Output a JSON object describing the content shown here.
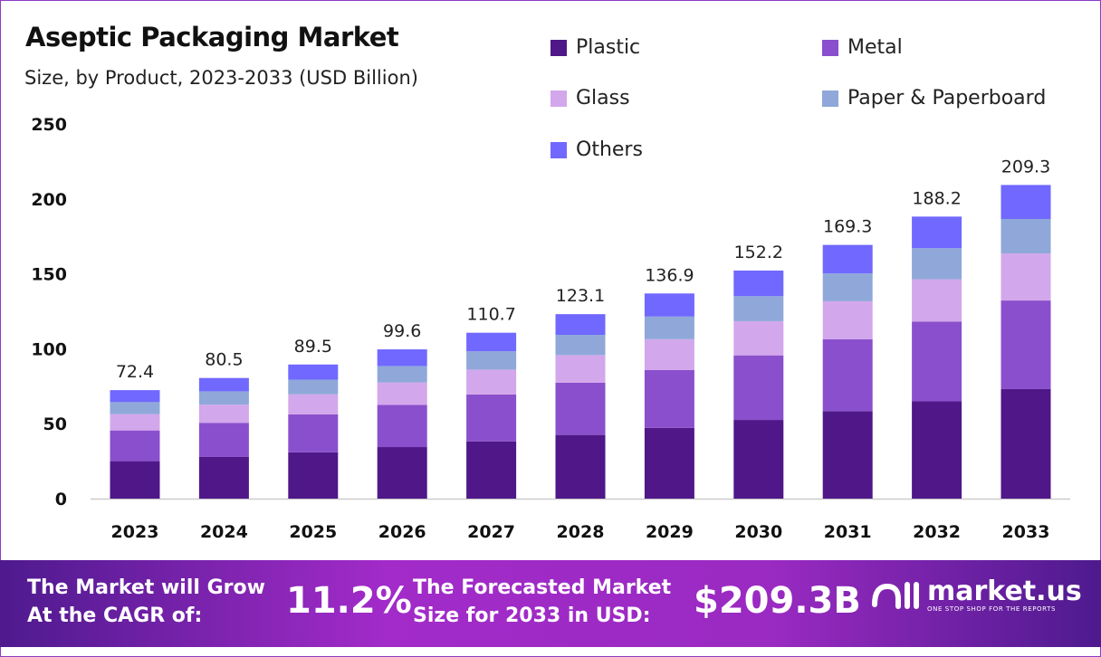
{
  "chart_data": {
    "type": "bar",
    "stacked": true,
    "title": "Aseptic Packaging Market",
    "subtitle": "Size, by Product, 2023-2033 (USD Billion)",
    "xlabel": "",
    "ylabel": "",
    "ylim": [
      0,
      250
    ],
    "yticks": [
      0,
      50,
      100,
      150,
      200,
      250
    ],
    "grid": false,
    "legend_position": "top-right",
    "categories": [
      "2023",
      "2024",
      "2025",
      "2026",
      "2027",
      "2028",
      "2029",
      "2030",
      "2031",
      "2032",
      "2033"
    ],
    "totals": [
      "72.4",
      "80.5",
      "89.5",
      "99.6",
      "110.7",
      "123.1",
      "136.9",
      "152.2",
      "169.3",
      "188.2",
      "209.3"
    ],
    "series": [
      {
        "name": "Plastic",
        "color": "#4f1787",
        "values": [
          25.0,
          27.8,
          30.9,
          34.4,
          38.2,
          42.5,
          47.2,
          52.5,
          58.4,
          64.9,
          73.1
        ]
      },
      {
        "name": "Metal",
        "color": "#8a4fcc",
        "values": [
          20.5,
          22.8,
          25.3,
          28.2,
          31.3,
          34.8,
          38.7,
          43.1,
          47.9,
          53.3,
          59.1
        ]
      },
      {
        "name": "Glass",
        "color": "#d3a7eb",
        "values": [
          10.9,
          12.1,
          13.4,
          14.9,
          16.6,
          18.5,
          20.5,
          22.8,
          25.4,
          28.2,
          31.4
        ]
      },
      {
        "name": "Paper & Paperboard",
        "color": "#8fa8d9",
        "values": [
          8.0,
          8.9,
          9.8,
          11.0,
          12.2,
          13.5,
          15.1,
          16.7,
          18.6,
          20.7,
          23.0
        ]
      },
      {
        "name": "Others",
        "color": "#7068ff",
        "values": [
          8.0,
          8.9,
          10.1,
          11.1,
          12.4,
          13.8,
          15.4,
          17.1,
          19.0,
          21.1,
          22.7
        ]
      }
    ]
  },
  "banner": {
    "cagr_label_1": "The Market will Grow",
    "cagr_label_2": "At the CAGR of:",
    "cagr_value": "11.2%",
    "forecast_label_1": "The Forecasted Market",
    "forecast_label_2": "Size for 2033 in USD:",
    "forecast_value": "$209.3B",
    "brand": "market.us",
    "brand_tagline": "ONE STOP SHOP FOR THE REPORTS"
  }
}
